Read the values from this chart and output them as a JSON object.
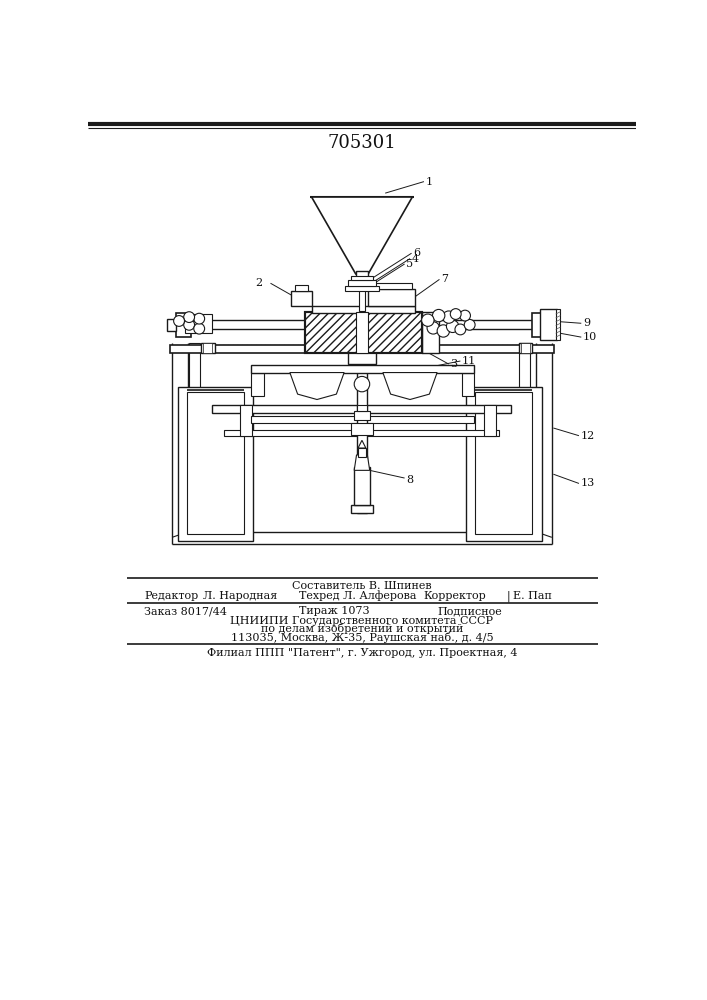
{
  "patent_number": "705301",
  "bg_color": "#ffffff",
  "paper_color": "#f8f7f4",
  "line_color": "#1a1a1a",
  "hatch_color": "#1a1a1a",
  "text_color": "#111111",
  "footer": {
    "sestavitel_label": "Составитель В. Шпинев",
    "redaktor_label": "Редактор",
    "redaktor_name": "Л. Народная",
    "tehred_label": "Техред Л. Алферова",
    "korrektor_label": "Корректор",
    "korrektor_name": "Е. Пап",
    "zakaz": "Заказ 8017/44",
    "tirazh": "Тираж 1073",
    "podpisnoe": "Подписное",
    "org_line1": "ЦНИИПИ Государственного комитета СССР",
    "org_line2": "по делам изобретений и открытий",
    "org_line3": "113035, Москва, Ж-35, Раушская наб., д. 4/5",
    "filial": "Филиал ППП \"Патент\", г. Ужгород, ул. Проектная, 4"
  }
}
